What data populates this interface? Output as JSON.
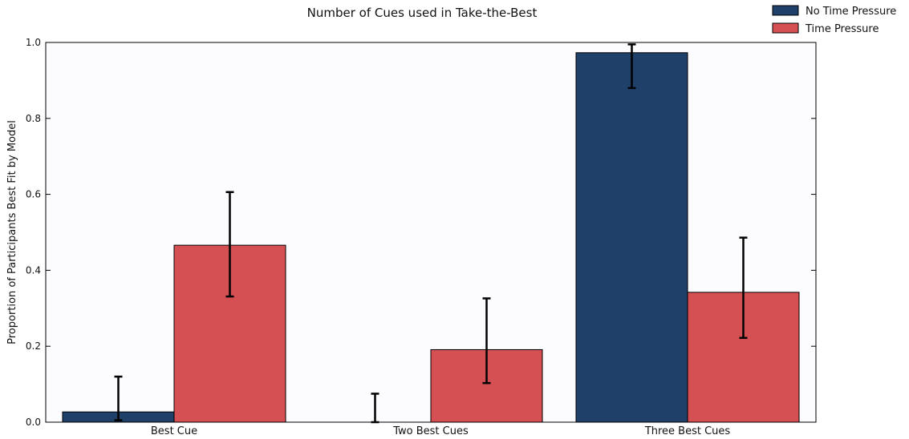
{
  "chart_data": {
    "type": "bar",
    "title": "Number of Cues used in Take-the-Best",
    "xlabel": "",
    "ylabel": "Proportion of Participants Best Fit by Model",
    "categories": [
      "Best Cue",
      "Two Best Cues",
      "Three Best Cues"
    ],
    "ylim": [
      0,
      1.0
    ],
    "yticks": [
      "0.0",
      "0.2",
      "0.4",
      "0.6",
      "0.8",
      "1.0"
    ],
    "grid": false,
    "legend_position": "top-right, outside plot",
    "series": [
      {
        "name": "No Time Pressure",
        "color": "#1f4068",
        "values": [
          0.027,
          0.0,
          0.973
        ],
        "error_low": [
          0.005,
          0.0,
          0.88
        ],
        "error_high": [
          0.12,
          0.075,
          0.995
        ]
      },
      {
        "name": "Time Pressure",
        "color": "#d45052",
        "values": [
          0.466,
          0.191,
          0.342
        ],
        "error_low": [
          0.331,
          0.103,
          0.222
        ],
        "error_high": [
          0.606,
          0.326,
          0.486
        ]
      }
    ]
  }
}
